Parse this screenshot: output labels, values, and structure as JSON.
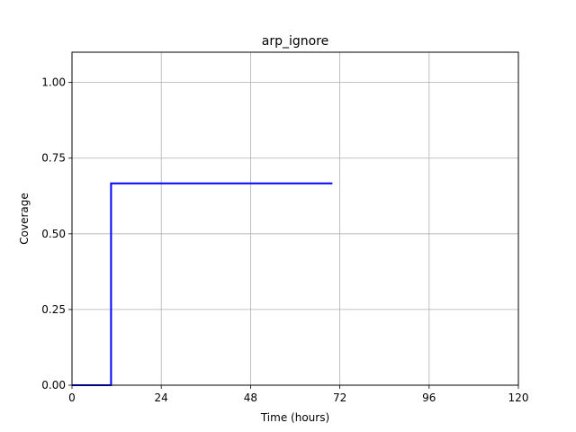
{
  "chart_data": {
    "type": "line",
    "title": "arp_ignore",
    "xlabel": "Time (hours)",
    "ylabel": "Coverage",
    "xlim": [
      0,
      120
    ],
    "ylim": [
      0,
      1.1
    ],
    "xticks": [
      0,
      24,
      48,
      72,
      96,
      120
    ],
    "xtick_labels": [
      "0",
      "24",
      "48",
      "72",
      "96",
      "120"
    ],
    "yticks": [
      0,
      0.25,
      0.5,
      0.75,
      1.0
    ],
    "ytick_labels": [
      "0.00",
      "0.25",
      "0.50",
      "0.75",
      "1.00"
    ],
    "grid": true,
    "series": [
      {
        "color": "#0000ff",
        "x": [
          0,
          10.5,
          10.5,
          70
        ],
        "y": [
          0,
          0,
          0.6667,
          0.6667
        ]
      }
    ]
  }
}
